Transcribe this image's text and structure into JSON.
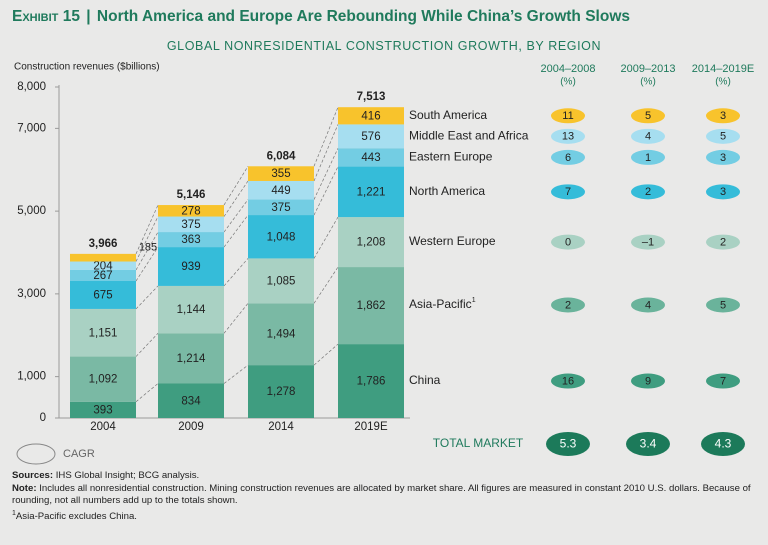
{
  "exhibit": {
    "label": "Exhibit 15",
    "separator": "|",
    "headline": "North America and Europe Are Rebounding While China’s Growth Slows"
  },
  "chart_data": {
    "type": "bar",
    "stacked": true,
    "title": "GLOBAL NONRESIDENTIAL CONSTRUCTION GROWTH, BY REGION",
    "ylabel": "Construction revenues ($billions)",
    "ylim": [
      0,
      8000
    ],
    "yticks": [
      {
        "value": 0,
        "label": "0"
      },
      {
        "value": 1000,
        "label": "1,000"
      },
      {
        "value": 3000,
        "label": "3,000"
      },
      {
        "value": 5000,
        "label": "5,000"
      },
      {
        "value": 7000,
        "label": "7,000"
      },
      {
        "value": 8000,
        "label": "8,000"
      }
    ],
    "categories": [
      "2004",
      "2009",
      "2014",
      "2019E"
    ],
    "totals": [
      "3,966",
      "5,146",
      "6,084",
      "7,513"
    ],
    "series": [
      {
        "name": "China",
        "color": "#3f9d80",
        "values": [
          393,
          834,
          1278,
          1786
        ],
        "labels": [
          "393",
          "834",
          "1,278",
          "1,786"
        ],
        "cagr": [
          "16",
          "9",
          "7"
        ],
        "cagr_color": "#3f9d80"
      },
      {
        "name": "Asia-Pacific",
        "name_sup": "1",
        "color": "#7ab9a4",
        "values": [
          1092,
          1214,
          1494,
          1862
        ],
        "labels": [
          "1,092",
          "1,214",
          "1,494",
          "1,862"
        ],
        "cagr": [
          "2",
          "4",
          "5"
        ],
        "cagr_color": "#6ab39b"
      },
      {
        "name": "Western Europe",
        "color": "#a9d1c3",
        "values": [
          1151,
          1144,
          1085,
          1208
        ],
        "labels": [
          "1,151",
          "1,144",
          "1,085",
          "1,208"
        ],
        "cagr": [
          "0",
          "–1",
          "2"
        ],
        "cagr_color": "#a9d1c3"
      },
      {
        "name": "North America",
        "color": "#35bcd9",
        "values": [
          675,
          939,
          1048,
          1221
        ],
        "labels": [
          "675",
          "939",
          "1,048",
          "1,221"
        ],
        "cagr": [
          "7",
          "2",
          "3"
        ],
        "cagr_color": "#35bcd9"
      },
      {
        "name": "Eastern Europe",
        "color": "#73cde3",
        "values": [
          267,
          363,
          375,
          443
        ],
        "labels": [
          "267",
          "363",
          "375",
          "443"
        ],
        "cagr": [
          "6",
          "1",
          "3"
        ],
        "cagr_color": "#73cde3"
      },
      {
        "name": "Middle East and Africa",
        "color": "#a6def0",
        "values": [
          204,
          375,
          449,
          576
        ],
        "labels": [
          "204",
          "375",
          "449",
          "576"
        ],
        "cagr": [
          "13",
          "4",
          "5"
        ],
        "cagr_color": "#a6def0"
      },
      {
        "name": "South America",
        "color": "#f8c32c",
        "values": [
          185,
          278,
          355,
          416
        ],
        "labels": [
          "185",
          "278",
          "355",
          "416"
        ],
        "cagr": [
          "11",
          "5",
          "3"
        ],
        "cagr_color": "#f8c32c"
      }
    ],
    "cagr_periods": [
      {
        "years": "2004–2008",
        "unit": "(%)"
      },
      {
        "years": "2009–2013",
        "unit": "(%)"
      },
      {
        "years": "2014–2019E",
        "unit": "(%)"
      }
    ],
    "total_market": {
      "label": "TOTAL MARKET",
      "cagr": [
        "5.3",
        "3.4",
        "4.3"
      ],
      "color": "#1c7a5a"
    },
    "legend_cagr_label": "CAGR"
  },
  "colors": {
    "title": "#1f7a5c",
    "background": "#e9e9e8"
  },
  "sources": {
    "sources_label": "Sources:",
    "sources_text": "IHS Global Insight; BCG analysis.",
    "note_label": "Note:",
    "note_text": "Includes all nonresidential construction. Mining construction revenues are allocated by market share. All figures are measured in constant 2010 U.S. dollars. Because of rounding, not all numbers add up to the totals shown.",
    "footnote_mark": "1",
    "footnote_text": "Asia-Pacific excludes China."
  }
}
